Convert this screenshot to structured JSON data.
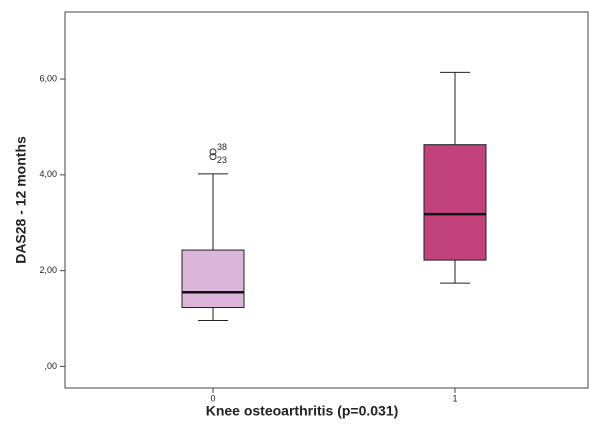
{
  "chart_data": {
    "type": "box",
    "xlabel": "Knee osteoarthritis (p=0.031)",
    "ylabel": "DAS28 - 12 months",
    "categories": [
      "0",
      "1"
    ],
    "ylim": [
      -0.45,
      7.4
    ],
    "yticks": [
      {
        "value": 0,
        "label": ",00"
      },
      {
        "value": 2,
        "label": "2,00"
      },
      {
        "value": 4,
        "label": "4,00"
      },
      {
        "value": 6,
        "label": "6,00"
      }
    ],
    "boxes": [
      {
        "whislo": 0.96,
        "q1": 1.23,
        "median": 1.55,
        "q3": 2.43,
        "whishi": 4.02,
        "color": "#dbb6da",
        "outliers": [
          {
            "value": 4.48,
            "label": "38"
          },
          {
            "value": 4.38,
            "label": "23"
          }
        ]
      },
      {
        "whislo": 1.74,
        "q1": 2.22,
        "median": 3.18,
        "q3": 4.63,
        "whishi": 6.14,
        "color": "#c2437c",
        "outliers": []
      }
    ]
  }
}
